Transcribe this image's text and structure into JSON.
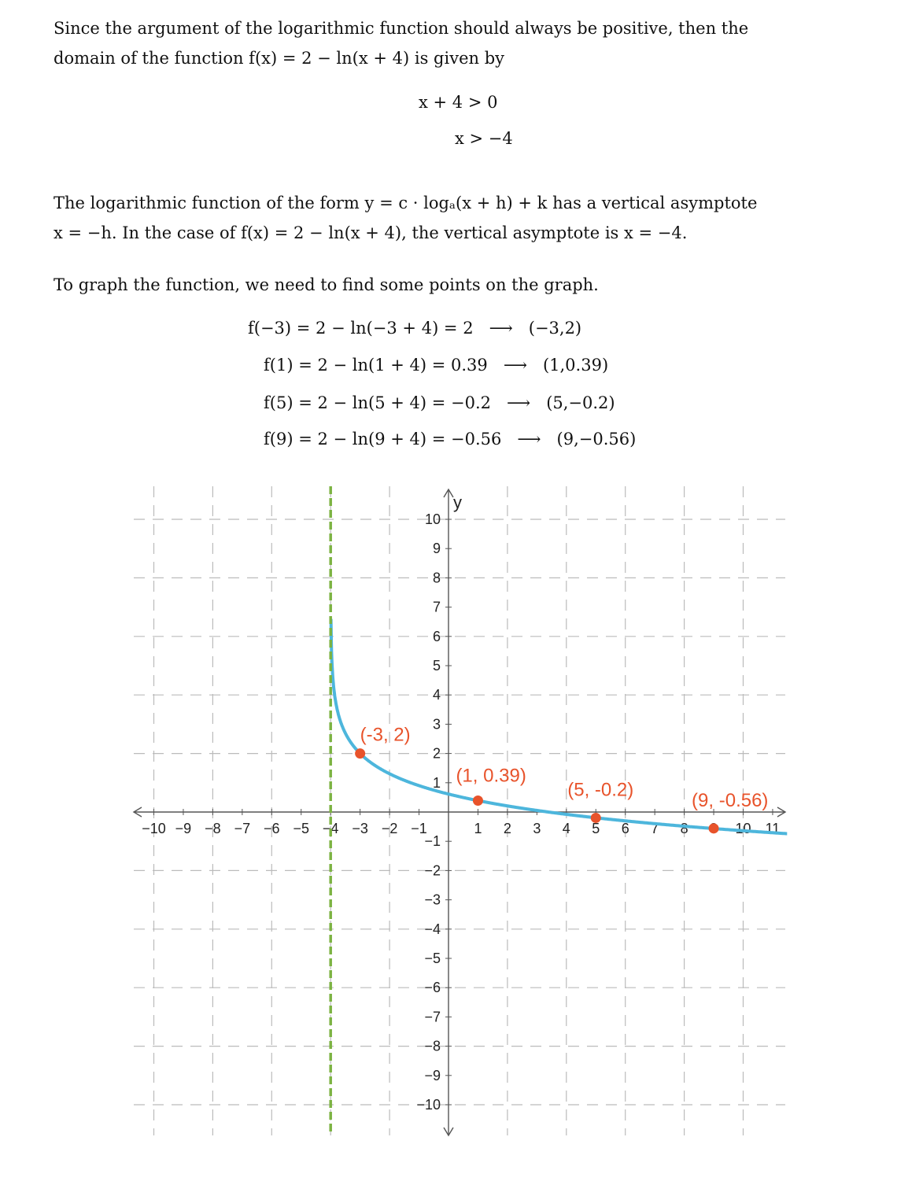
{
  "para1": [
    "Since the argument of the logarithmic function should always be positive, then the",
    "domain of the function f(x) = 2 − ln(x + 4) is given by"
  ],
  "ineq": [
    "x + 4 > 0",
    "x > −4"
  ],
  "para2": [
    "The logarithmic function of the form y = c · logₐ(x + h) + k has a vertical asymptote",
    "x = −h. In the case of f(x) = 2 − ln(x + 4), the vertical asymptote is x = −4."
  ],
  "para3": "To graph the function, we need to find some points on the graph.",
  "evals": [
    {
      "expr": "f(−3) = 2 − ln(−3 + 4) = 2",
      "arrow": "⟶",
      "point": "(−3,2)"
    },
    {
      "expr": "f(1) = 2 − ln(1 + 4) = 0.39",
      "arrow": "⟶",
      "point": "(1,0.39)"
    },
    {
      "expr": "f(5) = 2 − ln(5 + 4) = −0.2",
      "arrow": "⟶",
      "point": "(5,−0.2)"
    },
    {
      "expr": "f(9) = 2 − ln(9 + 4) = −0.56",
      "arrow": "⟶",
      "point": "(9,−0.56)"
    }
  ],
  "chart_data": {
    "type": "line",
    "function": "f(x) = 2 - ln(x + 4)",
    "ylabel": "y",
    "xlim": [
      -10,
      11
    ],
    "ylim": [
      -10,
      10
    ],
    "grid": true,
    "asymptote": {
      "x": -4,
      "color": "#7cb342"
    },
    "curve_color": "#4db6dc",
    "point_color": "#e8532b",
    "points": [
      {
        "x": -3,
        "y": 2,
        "label": "(-3, 2)"
      },
      {
        "x": 1,
        "y": 0.39,
        "label": "(1, 0.39)"
      },
      {
        "x": 5,
        "y": -0.2,
        "label": "(5, -0.2)"
      },
      {
        "x": 9,
        "y": -0.56,
        "label": "(9, -0.56)"
      }
    ],
    "xticks": [
      "−10",
      "−9",
      "−8",
      "−7",
      "−6",
      "−5",
      "−4",
      "−3",
      "−2",
      "−1",
      "1",
      "2",
      "3",
      "4",
      "5",
      "6",
      "7",
      "8",
      "9",
      "10",
      "11"
    ],
    "yticks": [
      "10",
      "9",
      "8",
      "7",
      "6",
      "5",
      "4",
      "3",
      "2",
      "1",
      "−1",
      "−2",
      "−3",
      "−4",
      "−5",
      "−6",
      "−7",
      "−8",
      "−9",
      "−10"
    ]
  }
}
